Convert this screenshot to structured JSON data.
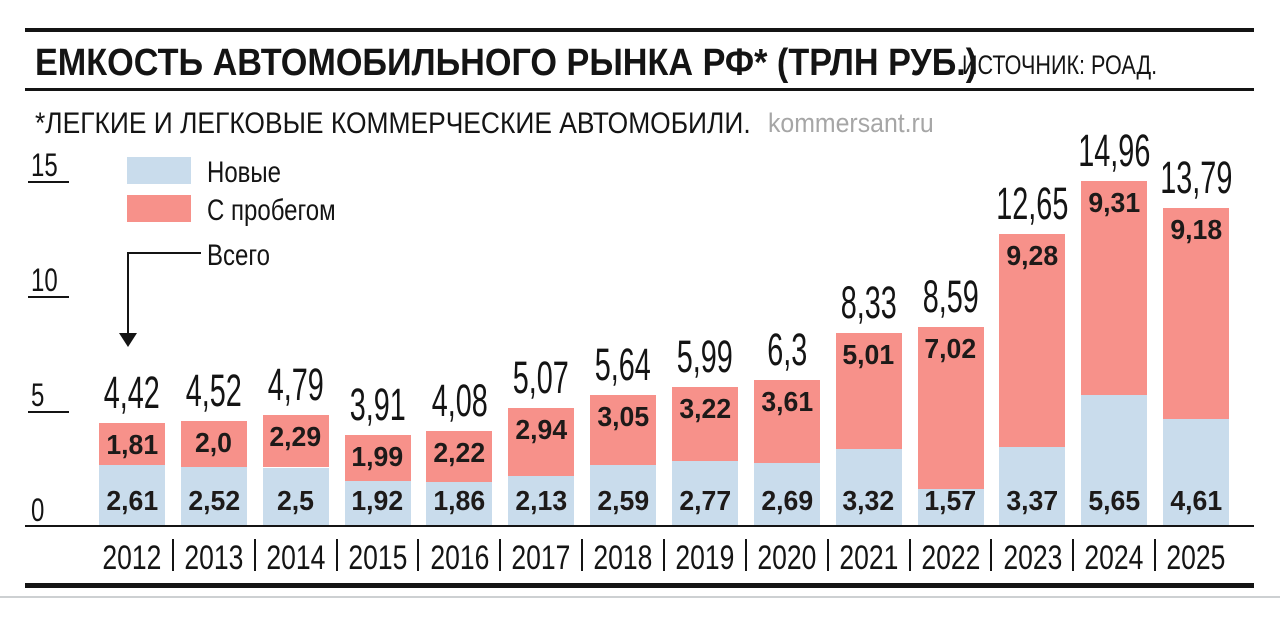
{
  "header": {
    "title": "ЕМКОСТЬ АВТОМОБИЛЬНОГО РЫНКА РФ* (ТРЛН РУБ.)",
    "source": "ИСТОЧНИК: РОАД.",
    "subtitle": "*ЛЕГКИЕ И ЛЕГКОВЫЕ КОММЕРЧЕСКИЕ АВТОМОБИЛИ.",
    "watermark": "kommersant.ru"
  },
  "legend": {
    "new_label": "Новые",
    "used_label": "С пробегом",
    "total_label": "Всего"
  },
  "colors": {
    "new_bar": "#c9dcec",
    "used_bar": "#f7918a",
    "ink": "#141414",
    "watermark": "#a6a6a6",
    "bottom_gray_rule": "#cdd0d2"
  },
  "chart_data": {
    "type": "bar",
    "stacked": true,
    "title": "ЕМКОСТЬ АВТОМОБИЛЬНОГО РЫНКА РФ (ТРЛН РУБ.)",
    "xlabel": "",
    "ylabel": "трлн руб.",
    "ylim": [
      0,
      15
    ],
    "y_ticks": [
      0,
      5,
      10,
      15
    ],
    "y_tick_labels": [
      "0",
      "5",
      "10",
      "15"
    ],
    "grid": false,
    "legend_position": "top-left",
    "categories": [
      "2012",
      "2013",
      "2014",
      "2015",
      "2016",
      "2017",
      "2018",
      "2019",
      "2020",
      "2021",
      "2022",
      "2023",
      "2024",
      "2025"
    ],
    "series": [
      {
        "name": "Новые",
        "values": [
          2.61,
          2.52,
          2.5,
          1.92,
          1.86,
          2.13,
          2.59,
          2.77,
          2.69,
          3.32,
          1.57,
          3.37,
          5.65,
          4.61
        ],
        "labels": [
          "2,61",
          "2,52",
          "2,5",
          "1,92",
          "1,86",
          "2,13",
          "2,59",
          "2,77",
          "2,69",
          "3,32",
          "1,57",
          "3,37",
          "5,65",
          "4,61"
        ]
      },
      {
        "name": "С пробегом",
        "values": [
          1.81,
          2.0,
          2.29,
          1.99,
          2.22,
          2.94,
          3.05,
          3.22,
          3.61,
          5.01,
          7.02,
          9.28,
          9.31,
          9.18
        ],
        "labels": [
          "1,81",
          "2,0",
          "2,29",
          "1,99",
          "2,22",
          "2,94",
          "3,05",
          "3,22",
          "3,61",
          "5,01",
          "7,02",
          "9,28",
          "9,31",
          "9,18"
        ]
      }
    ],
    "totals": {
      "name": "Всего",
      "values": [
        4.42,
        4.52,
        4.79,
        3.91,
        4.08,
        5.07,
        5.64,
        5.99,
        6.3,
        8.33,
        8.59,
        12.65,
        14.96,
        13.79
      ],
      "labels": [
        "4,42",
        "4,52",
        "4,79",
        "3,91",
        "4,08",
        "5,07",
        "5,64",
        "5,99",
        "6,3",
        "8,33",
        "8,59",
        "12,65",
        "14,96",
        "13,79"
      ]
    }
  }
}
